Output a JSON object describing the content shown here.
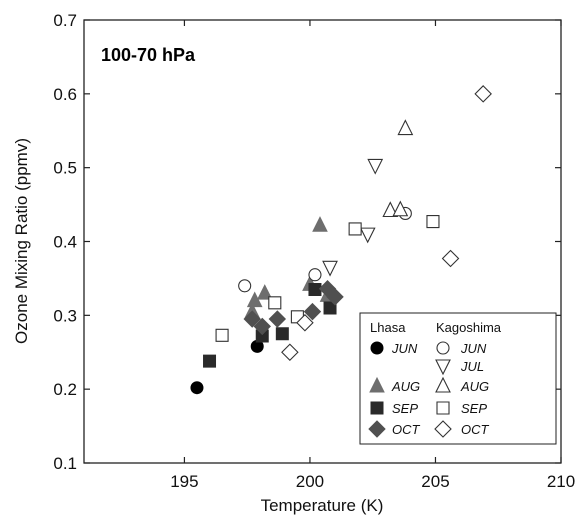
{
  "chart_data": {
    "type": "scatter",
    "panel_label": "100-70 hPa",
    "xlabel": "Temperature (K)",
    "ylabel": "Ozone Mixing Ratio (ppmv)",
    "xlim": [
      191,
      210
    ],
    "ylim": [
      0.1,
      0.7
    ],
    "x_ticks": [
      195,
      200,
      205,
      210
    ],
    "y_ticks": [
      0.1,
      0.2,
      0.3,
      0.4,
      0.5,
      0.6,
      0.7
    ],
    "x_tick_labels": [
      "195",
      "200",
      "205",
      "210"
    ],
    "y_tick_labels": [
      "0.1",
      "0.2",
      "0.3",
      "0.4",
      "0.5",
      "0.6",
      "0.7"
    ],
    "grid": false,
    "legend": {
      "position": "bottom-right",
      "group_headers": [
        "Lhasa",
        "Kagoshima"
      ]
    },
    "series": [
      {
        "name": "JUN",
        "station": "Lhasa",
        "marker": "circle",
        "filled": true,
        "color": "#000000",
        "points": [
          [
            195.5,
            0.202
          ],
          [
            197.9,
            0.258
          ]
        ]
      },
      {
        "name": "AUG",
        "station": "Lhasa",
        "marker": "triangle-up",
        "filled": true,
        "color": "#6e6e6e",
        "points": [
          [
            197.7,
            0.305
          ],
          [
            197.8,
            0.32
          ],
          [
            198.2,
            0.33
          ],
          [
            200.0,
            0.342
          ],
          [
            200.4,
            0.422
          ],
          [
            200.7,
            0.327
          ]
        ]
      },
      {
        "name": "SEP",
        "station": "Lhasa",
        "marker": "square",
        "filled": true,
        "color": "#2a2a2a",
        "points": [
          [
            196.0,
            0.238
          ],
          [
            198.1,
            0.272
          ],
          [
            198.9,
            0.275
          ],
          [
            200.2,
            0.335
          ],
          [
            200.8,
            0.31
          ]
        ]
      },
      {
        "name": "OCT",
        "station": "Lhasa",
        "marker": "diamond",
        "filled": true,
        "color": "#505050",
        "points": [
          [
            197.7,
            0.295
          ],
          [
            198.1,
            0.285
          ],
          [
            198.7,
            0.295
          ],
          [
            200.1,
            0.305
          ],
          [
            200.7,
            0.336
          ],
          [
            201.0,
            0.325
          ]
        ]
      },
      {
        "name": "JUN",
        "station": "Kagoshima",
        "marker": "circle",
        "filled": false,
        "color": "#333333",
        "points": [
          [
            197.4,
            0.34
          ],
          [
            200.2,
            0.355
          ],
          [
            203.8,
            0.438
          ]
        ]
      },
      {
        "name": "JUL",
        "station": "Kagoshima",
        "marker": "triangle-down",
        "filled": false,
        "color": "#333333",
        "points": [
          [
            200.8,
            0.365
          ],
          [
            202.3,
            0.41
          ],
          [
            202.6,
            0.503
          ]
        ]
      },
      {
        "name": "AUG",
        "station": "Kagoshima",
        "marker": "triangle-up",
        "filled": false,
        "color": "#333333",
        "points": [
          [
            203.2,
            0.442
          ],
          [
            203.6,
            0.443
          ],
          [
            203.8,
            0.553
          ]
        ]
      },
      {
        "name": "SEP",
        "station": "Kagoshima",
        "marker": "square",
        "filled": false,
        "color": "#333333",
        "points": [
          [
            196.5,
            0.273
          ],
          [
            198.6,
            0.317
          ],
          [
            199.5,
            0.298
          ],
          [
            201.8,
            0.417
          ],
          [
            204.9,
            0.427
          ]
        ]
      },
      {
        "name": "OCT",
        "station": "Kagoshima",
        "marker": "diamond",
        "filled": false,
        "color": "#333333",
        "points": [
          [
            199.2,
            0.25
          ],
          [
            199.8,
            0.29
          ],
          [
            205.6,
            0.377
          ],
          [
            206.9,
            0.6
          ]
        ]
      }
    ]
  }
}
